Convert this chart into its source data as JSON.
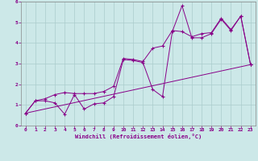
{
  "xlabel": "Windchill (Refroidissement éolien,°C)",
  "ylabel": "",
  "bg_color": "#cce8e8",
  "line_color": "#880088",
  "grid_color": "#aacccc",
  "xlim": [
    -0.5,
    23.5
  ],
  "ylim": [
    0,
    6
  ],
  "xticks": [
    0,
    1,
    2,
    3,
    4,
    5,
    6,
    7,
    8,
    9,
    10,
    11,
    12,
    13,
    14,
    15,
    16,
    17,
    18,
    19,
    20,
    21,
    22,
    23
  ],
  "yticks": [
    0,
    1,
    2,
    3,
    4,
    5,
    6
  ],
  "line1_x": [
    0,
    1,
    2,
    3,
    4,
    5,
    6,
    7,
    8,
    9,
    10,
    11,
    12,
    13,
    14,
    15,
    16,
    17,
    18,
    19,
    20,
    21,
    22,
    23
  ],
  "line1_y": [
    0.6,
    1.2,
    1.2,
    1.1,
    0.55,
    1.5,
    0.8,
    1.05,
    1.1,
    1.4,
    3.2,
    3.15,
    3.05,
    1.75,
    1.4,
    4.55,
    5.8,
    4.25,
    4.25,
    4.45,
    5.15,
    4.6,
    5.3,
    2.95
  ],
  "line2_x": [
    0,
    1,
    2,
    3,
    4,
    5,
    6,
    7,
    8,
    9,
    10,
    11,
    12,
    13,
    14,
    15,
    16,
    17,
    18,
    19,
    20,
    21,
    22,
    23
  ],
  "line2_y": [
    0.6,
    1.2,
    1.3,
    1.5,
    1.6,
    1.55,
    1.55,
    1.55,
    1.65,
    1.9,
    3.25,
    3.2,
    3.1,
    3.75,
    3.85,
    4.6,
    4.55,
    4.3,
    4.45,
    4.5,
    5.2,
    4.65,
    5.3,
    2.95
  ],
  "line3_x": [
    0,
    23
  ],
  "line3_y": [
    0.6,
    2.95
  ]
}
